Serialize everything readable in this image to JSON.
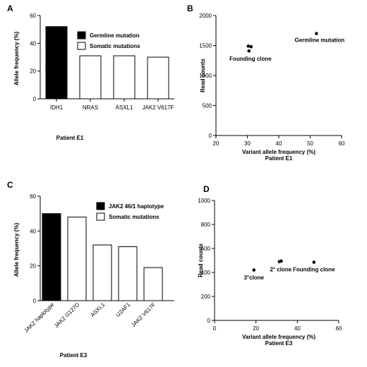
{
  "chart_data": [
    {
      "panel": "A",
      "type": "bar",
      "ylabel": "Allele frequency (%)",
      "xlabel": "Patient E1",
      "ylim": [
        0,
        60
      ],
      "yticks": [
        "0",
        "20",
        "40",
        "60"
      ],
      "categories": [
        "IDH1",
        "NRAS",
        "ASXL1",
        "JAK2 V617F"
      ],
      "values": [
        52,
        31,
        31,
        30
      ],
      "fills": [
        "#000000",
        "#ffffff",
        "#ffffff",
        "#ffffff"
      ],
      "legend": [
        {
          "label": "Germline mutation",
          "fill": "#000000"
        },
        {
          "label": "Somatic mutations",
          "fill": "#ffffff"
        }
      ],
      "legend_position": "top-right"
    },
    {
      "panel": "B",
      "type": "scatter",
      "ylabel": "Read counts",
      "xlabel": "Variant allele frequency (%)",
      "subtitle": "Patient E1",
      "xlim": [
        20,
        60
      ],
      "ylim": [
        0,
        2000
      ],
      "xticks": [
        "20",
        "30",
        "40",
        "50",
        "60"
      ],
      "yticks": [
        "0",
        "500",
        "1000",
        "1500",
        "2000"
      ],
      "points": [
        {
          "x": 30.3,
          "y": 1490
        },
        {
          "x": 31.2,
          "y": 1480
        },
        {
          "x": 30.5,
          "y": 1410
        },
        {
          "x": 52,
          "y": 1700
        }
      ],
      "annotations": [
        {
          "text": "Founding clone",
          "x": 31,
          "y": 1250
        },
        {
          "text": "Germline mutation",
          "x": 53,
          "y": 1560
        }
      ]
    },
    {
      "panel": "C",
      "type": "bar",
      "ylabel": "Allele frequency (%)",
      "xlabel": "Patient E3",
      "ylim": [
        0,
        60
      ],
      "yticks": [
        "0",
        "20",
        "40",
        "60"
      ],
      "categories": [
        "JAK2 haplotype",
        "JAK2 G127D",
        "ASXL1",
        "U2AF1",
        "JAK2 V617F"
      ],
      "values": [
        50,
        48,
        32,
        31,
        19
      ],
      "fills": [
        "#000000",
        "#ffffff",
        "#ffffff",
        "#ffffff",
        "#ffffff"
      ],
      "legend": [
        {
          "label": "JAK2 46/1 haplotype",
          "fill": "#000000"
        },
        {
          "label": "Somatic mutations",
          "fill": "#ffffff"
        }
      ],
      "legend_position": "top-right"
    },
    {
      "panel": "D",
      "type": "scatter",
      "ylabel": "Read counts",
      "xlabel": "Variant allele frequency (%)",
      "subtitle": "Patient E3",
      "xlim": [
        0,
        60
      ],
      "ylim": [
        0,
        1000
      ],
      "xticks": [
        "0",
        "20",
        "40",
        "60"
      ],
      "yticks": [
        "0",
        "200",
        "400",
        "600",
        "800",
        "1000"
      ],
      "points": [
        {
          "x": 19,
          "y": 420
        },
        {
          "x": 31.3,
          "y": 490
        },
        {
          "x": 32.2,
          "y": 495
        },
        {
          "x": 48,
          "y": 485
        }
      ],
      "annotations": [
        {
          "text": "3°clone",
          "x": 19,
          "y": 340
        },
        {
          "text": "2° clone",
          "x": 32,
          "y": 410
        },
        {
          "text": "Founding clone",
          "x": 48,
          "y": 410
        }
      ]
    }
  ]
}
